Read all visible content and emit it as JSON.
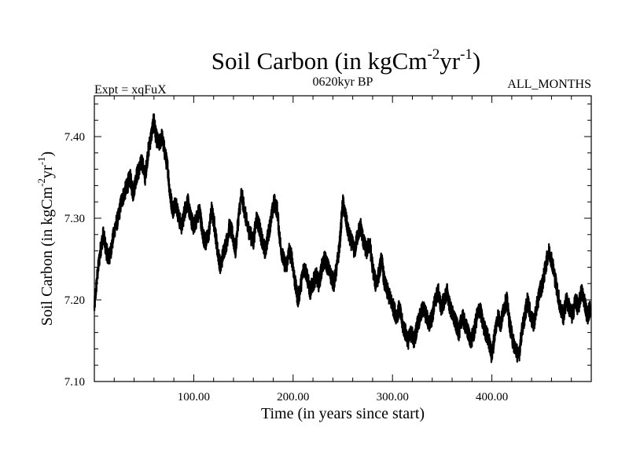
{
  "chart_data": {
    "type": "line",
    "title": {
      "main": "Soil Carbon (in kgCm",
      "sup1": "-2",
      "mid": "yr",
      "sup2": "-1",
      "end": ")"
    },
    "subtitle_left": "Expt = xqFuX",
    "subtitle_center": "0620kyr BP",
    "subtitle_right": "ALL_MONTHS",
    "xlabel": "Time (in years since start)",
    "ylabel": {
      "main": "Soil Carbon (in kgCm",
      "sup1": "-2",
      "mid": "yr",
      "sup2": "-1",
      "end": ")"
    },
    "xlim": [
      0,
      500
    ],
    "ylim": [
      7.1,
      7.45
    ],
    "x_ticks": [
      100,
      200,
      300,
      400
    ],
    "x_tick_labels": [
      "100.00",
      "200.00",
      "300.00",
      "400.00"
    ],
    "y_ticks": [
      7.1,
      7.2,
      7.3,
      7.4
    ],
    "y_tick_labels": [
      "7.10",
      "7.20",
      "7.30",
      "7.40"
    ],
    "series": [
      {
        "name": "Soil Carbon",
        "color": "#000000",
        "x": [
          0,
          3,
          6,
          9,
          12,
          15,
          18,
          21,
          24,
          27,
          30,
          33,
          36,
          39,
          42,
          45,
          48,
          51,
          54,
          57,
          60,
          62,
          65,
          68,
          71,
          74,
          76,
          79,
          82,
          85,
          88,
          91,
          94,
          97,
          100,
          103,
          106,
          109,
          112,
          115,
          118,
          121,
          124,
          127,
          130,
          133,
          136,
          139,
          142,
          145,
          148,
          151,
          154,
          157,
          160,
          163,
          166,
          169,
          172,
          175,
          178,
          181,
          184,
          187,
          190,
          193,
          196,
          199,
          202,
          205,
          208,
          211,
          214,
          217,
          220,
          223,
          226,
          229,
          232,
          235,
          238,
          241,
          244,
          247,
          250,
          253,
          256,
          259,
          262,
          265,
          268,
          271,
          274,
          277,
          280,
          283,
          286,
          289,
          292,
          295,
          298,
          301,
          304,
          307,
          310,
          313,
          316,
          319,
          322,
          325,
          328,
          331,
          334,
          337,
          340,
          343,
          346,
          349,
          352,
          355,
          358,
          361,
          364,
          367,
          370,
          373,
          376,
          379,
          382,
          385,
          388,
          391,
          394,
          397,
          400,
          403,
          406,
          409,
          412,
          415,
          418,
          421,
          424,
          427,
          430,
          433,
          436,
          439,
          442,
          445,
          448,
          451,
          454,
          457,
          460,
          463,
          466,
          469,
          472,
          475,
          478,
          481,
          484,
          487,
          490,
          493,
          496,
          499
        ],
        "y": [
          7.19,
          7.23,
          7.26,
          7.28,
          7.26,
          7.25,
          7.27,
          7.29,
          7.3,
          7.32,
          7.33,
          7.34,
          7.35,
          7.33,
          7.35,
          7.36,
          7.37,
          7.35,
          7.38,
          7.4,
          7.42,
          7.4,
          7.39,
          7.4,
          7.38,
          7.36,
          7.33,
          7.31,
          7.32,
          7.3,
          7.29,
          7.31,
          7.32,
          7.3,
          7.29,
          7.3,
          7.31,
          7.28,
          7.27,
          7.28,
          7.31,
          7.29,
          7.26,
          7.24,
          7.26,
          7.27,
          7.29,
          7.28,
          7.26,
          7.3,
          7.33,
          7.31,
          7.29,
          7.28,
          7.27,
          7.3,
          7.29,
          7.27,
          7.26,
          7.28,
          7.3,
          7.32,
          7.31,
          7.27,
          7.25,
          7.24,
          7.26,
          7.25,
          7.22,
          7.2,
          7.22,
          7.24,
          7.23,
          7.21,
          7.22,
          7.23,
          7.22,
          7.24,
          7.25,
          7.24,
          7.23,
          7.22,
          7.24,
          7.27,
          7.32,
          7.3,
          7.28,
          7.27,
          7.26,
          7.28,
          7.29,
          7.27,
          7.26,
          7.27,
          7.24,
          7.22,
          7.23,
          7.25,
          7.22,
          7.21,
          7.2,
          7.19,
          7.18,
          7.19,
          7.17,
          7.16,
          7.15,
          7.16,
          7.15,
          7.17,
          7.18,
          7.19,
          7.18,
          7.17,
          7.18,
          7.2,
          7.21,
          7.19,
          7.2,
          7.21,
          7.19,
          7.18,
          7.17,
          7.16,
          7.18,
          7.17,
          7.16,
          7.15,
          7.16,
          7.18,
          7.19,
          7.17,
          7.16,
          7.15,
          7.13,
          7.16,
          7.18,
          7.17,
          7.19,
          7.2,
          7.17,
          7.15,
          7.14,
          7.13,
          7.16,
          7.18,
          7.2,
          7.18,
          7.17,
          7.19,
          7.21,
          7.22,
          7.24,
          7.26,
          7.25,
          7.23,
          7.21,
          7.19,
          7.18,
          7.2,
          7.19,
          7.18,
          7.2,
          7.19,
          7.21,
          7.2,
          7.18,
          7.19
        ]
      }
    ]
  }
}
